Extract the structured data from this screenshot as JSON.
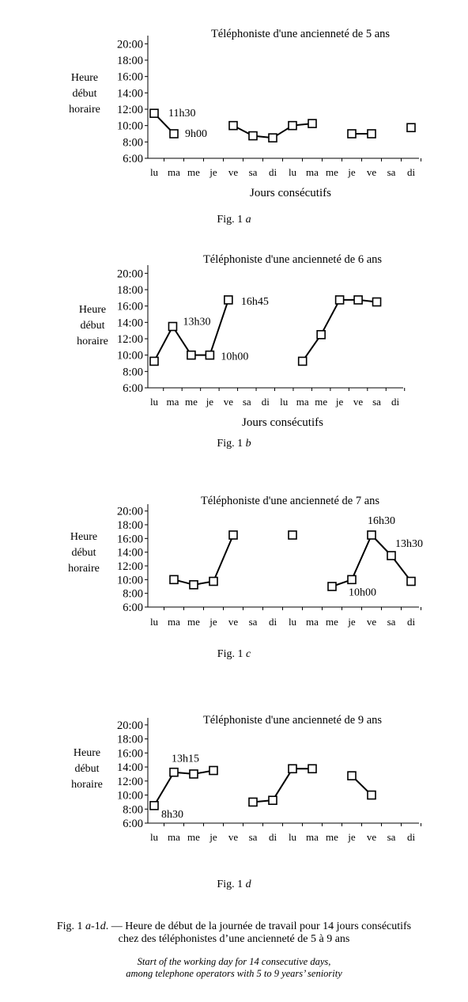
{
  "chart_data": [
    {
      "type": "line",
      "title": "Téléphoniste d'une ancienneté de 5 ans",
      "ylabel": [
        "Heure",
        "début",
        "horaire"
      ],
      "xlabel": "Jours consécutifs",
      "ylim": [
        6,
        21
      ],
      "yticks": [
        "20:00",
        "18:00",
        "16:00",
        "14:00",
        "12:00",
        "10:00",
        "8:00",
        "6:00"
      ],
      "categories": [
        "lu",
        "ma",
        "me",
        "je",
        "ve",
        "sa",
        "di",
        "lu",
        "ma",
        "me",
        "je",
        "ve",
        "sa",
        "di"
      ],
      "values": [
        11.5,
        9.0,
        null,
        null,
        10.0,
        8.75,
        8.5,
        10.0,
        10.25,
        null,
        9.0,
        9.0,
        null,
        9.75
      ],
      "annotations": [
        {
          "index": 0,
          "text": "11h30"
        },
        {
          "index": 1,
          "text": "9h00"
        }
      ],
      "fig_label": [
        "Fig. 1",
        "a"
      ]
    },
    {
      "type": "line",
      "title": "Téléphoniste d'une ancienneté de 6 ans",
      "ylabel": [
        "Heure",
        "début",
        "horaire"
      ],
      "xlabel": "Jours consécutifs",
      "ylim": [
        6,
        21
      ],
      "yticks": [
        "20:00",
        "18:00",
        "16:00",
        "14:00",
        "12:00",
        "10:00",
        "8:00",
        "6:00"
      ],
      "categories": [
        "lu",
        "ma",
        "me",
        "je",
        "ve",
        "sa",
        "di",
        "lu",
        "ma",
        "me",
        "je",
        "ve",
        "sa",
        "di"
      ],
      "values": [
        9.25,
        13.5,
        10.0,
        10.0,
        16.75,
        null,
        null,
        null,
        9.25,
        12.5,
        16.75,
        16.75,
        16.5,
        null
      ],
      "annotations": [
        {
          "index": 1,
          "text": "13h30"
        },
        {
          "index": 3,
          "text": "10h00"
        },
        {
          "index": 4,
          "text": "16h45"
        }
      ],
      "fig_label": [
        "Fig. 1",
        "b"
      ]
    },
    {
      "type": "line",
      "title": "Téléphoniste d'une ancienneté de 7 ans",
      "ylabel": [
        "Heure",
        "début",
        "horaire"
      ],
      "xlabel": "",
      "ylim": [
        6,
        21
      ],
      "yticks": [
        "20:00",
        "18:00",
        "16:00",
        "14:00",
        "12:00",
        "10:00",
        "8:00",
        "6:00"
      ],
      "categories": [
        "lu",
        "ma",
        "me",
        "je",
        "ve",
        "sa",
        "di",
        "lu",
        "ma",
        "me",
        "je",
        "ve",
        "sa",
        "di"
      ],
      "values": [
        null,
        10.0,
        9.25,
        9.75,
        16.5,
        null,
        null,
        16.5,
        null,
        9.0,
        10.0,
        16.5,
        13.5,
        9.75
      ],
      "annotations": [
        {
          "index": 10,
          "text": "10h00"
        },
        {
          "index": 11,
          "text": "16h30"
        },
        {
          "index": 12,
          "text": "13h30"
        }
      ],
      "fig_label": [
        "Fig. 1",
        "c"
      ]
    },
    {
      "type": "line",
      "title": "Téléphoniste d'une ancienneté de 9 ans",
      "ylabel": [
        "Heure",
        "début",
        "horaire"
      ],
      "xlabel": "",
      "ylim": [
        6,
        21
      ],
      "yticks": [
        "20:00",
        "18:00",
        "16:00",
        "14:00",
        "12:00",
        "10:00",
        "8:00",
        "6:00"
      ],
      "categories": [
        "lu",
        "ma",
        "me",
        "je",
        "ve",
        "sa",
        "di",
        "lu",
        "ma",
        "me",
        "je",
        "ve",
        "sa",
        "di"
      ],
      "values": [
        8.5,
        13.25,
        13.0,
        13.5,
        null,
        9.0,
        9.25,
        13.75,
        13.75,
        null,
        12.75,
        10.0,
        null,
        null
      ],
      "annotations": [
        {
          "index": 0,
          "text": "8h30"
        },
        {
          "index": 1,
          "text": "13h15"
        }
      ],
      "fig_label": [
        "Fig. 1",
        "d"
      ]
    }
  ],
  "caption": {
    "fr_line1_pre": "Fig. 1",
    "fr_line1_a": "a",
    "fr_line1_mid": "-1",
    "fr_line1_d": "d",
    "fr_line1_post": ". — Heure de début de la journée de travail pour 14 jours consécutifs",
    "fr_line2": "chez des téléphonistes d’une ancienneté de 5 à 9 ans",
    "en_line1": "Start of the working day for 14 consecutive days,",
    "en_line2": "among telephone operators with 5 to 9 years’ seniority"
  }
}
